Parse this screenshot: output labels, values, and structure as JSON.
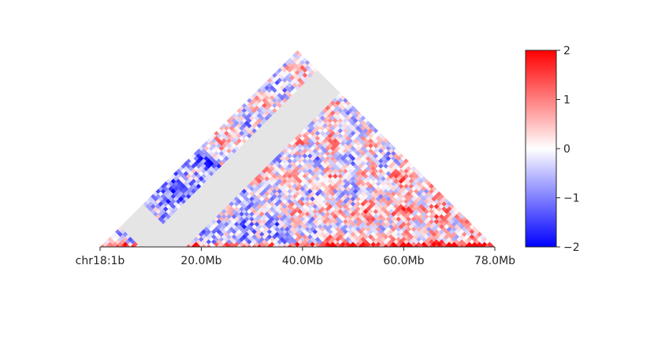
{
  "chart_data": {
    "type": "heatmap",
    "chromosome": "chr18",
    "x_ticks": [
      {
        "label": "chr18:1b",
        "value": 0
      },
      {
        "label": "20.0Mb",
        "value": 20
      },
      {
        "label": "40.0Mb",
        "value": 40
      },
      {
        "label": "60.0Mb",
        "value": 60
      },
      {
        "label": "78.0Mb",
        "value": 78
      }
    ],
    "xlim": [
      0,
      78
    ],
    "colorbar": {
      "cmap": "bwr",
      "vmin": -2,
      "vmax": 2,
      "ticks": [
        {
          "label": "2",
          "value": 2
        },
        {
          "label": "1",
          "value": 1
        },
        {
          "label": "0",
          "value": 0
        },
        {
          "label": "−1",
          "value": -1
        },
        {
          "label": "−2",
          "value": -2
        }
      ],
      "colors": {
        "low": "#0000ff",
        "mid": "#ffffff",
        "high": "#ff0000"
      }
    },
    "masked_region": {
      "start": 8,
      "end": 17,
      "color": "#e5e5e5"
    }
  }
}
